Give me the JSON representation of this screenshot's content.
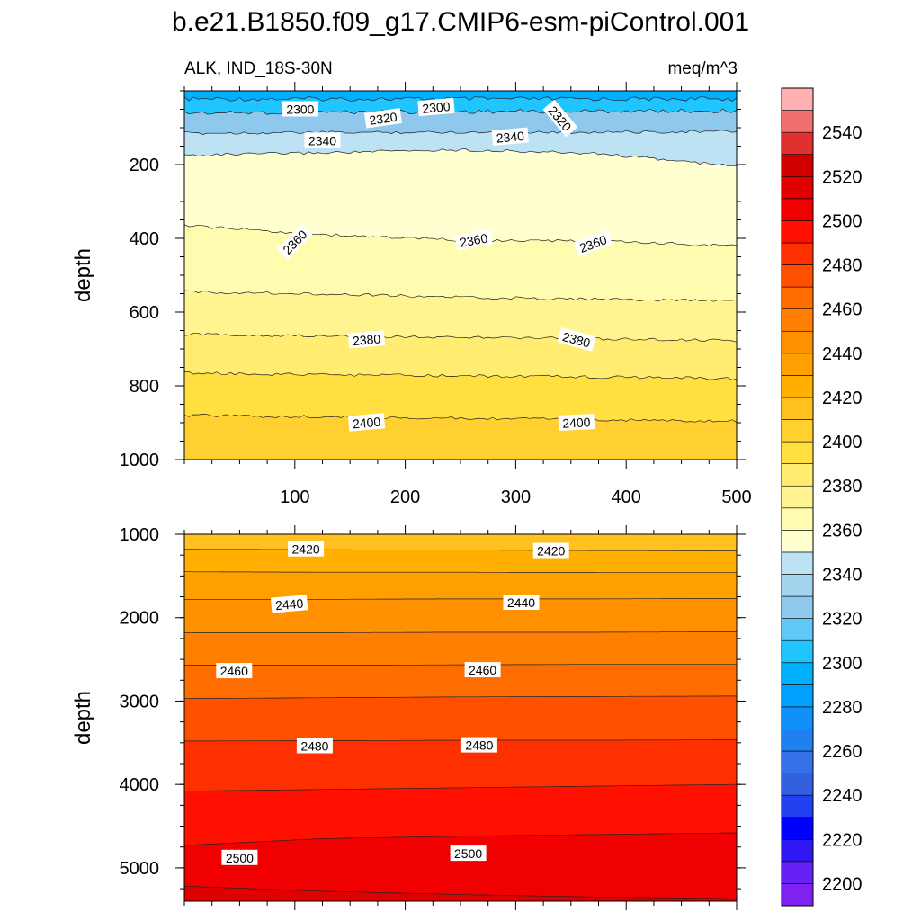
{
  "title": "b.e21.B1850.f09_g17.CMIP6-esm-piControl.001",
  "left_subtitle": "ALK, IND_18S-30N",
  "right_subtitle": "meq/m^3",
  "chart_data": [
    {
      "type": "contour",
      "panel": "upper",
      "ylabel": "depth",
      "xlabel": "",
      "xlim": [
        0,
        500
      ],
      "ylim": [
        1000,
        0
      ],
      "x_ticks": [
        100,
        200,
        300,
        400,
        500
      ],
      "y_ticks": [
        200,
        400,
        600,
        800,
        1000
      ],
      "contour_lines": [
        {
          "value": 2300,
          "depths": [
            22,
            22,
            22,
            22,
            22
          ]
        },
        {
          "value": 2320,
          "depths": [
            60,
            58,
            56,
            55,
            54
          ]
        },
        {
          "value": 2340,
          "depths": [
            115,
            113,
            112,
            112,
            110
          ]
        },
        {
          "value": 2350,
          "depths": [
            175,
            168,
            160,
            170,
            205
          ]
        },
        {
          "value": 2360,
          "depths": [
            365,
            390,
            405,
            408,
            420
          ]
        },
        {
          "value": 2370,
          "depths": [
            545,
            550,
            560,
            565,
            570
          ]
        },
        {
          "value": 2380,
          "depths": [
            660,
            665,
            668,
            672,
            678
          ]
        },
        {
          "value": 2390,
          "depths": [
            765,
            770,
            773,
            776,
            780
          ]
        },
        {
          "value": 2400,
          "depths": [
            880,
            884,
            888,
            892,
            896
          ]
        }
      ],
      "contour_labels": [
        {
          "text": "2300",
          "x": 105,
          "depth": 50,
          "angle": 0
        },
        {
          "text": "2320",
          "x": 180,
          "depth": 75,
          "angle": -8
        },
        {
          "text": "2300",
          "x": 228,
          "depth": 45,
          "angle": -5
        },
        {
          "text": "2320",
          "x": 340,
          "depth": 75,
          "angle": 50
        },
        {
          "text": "2340",
          "x": 125,
          "depth": 135,
          "angle": 0
        },
        {
          "text": "2340",
          "x": 295,
          "depth": 125,
          "angle": -5
        },
        {
          "text": "2360",
          "x": 100,
          "depth": 410,
          "angle": -45
        },
        {
          "text": "2360",
          "x": 262,
          "depth": 405,
          "angle": -10
        },
        {
          "text": "2360",
          "x": 370,
          "depth": 415,
          "angle": -20
        },
        {
          "text": "2380",
          "x": 165,
          "depth": 675,
          "angle": -5
        },
        {
          "text": "2380",
          "x": 355,
          "depth": 675,
          "angle": 15
        },
        {
          "text": "2400",
          "x": 165,
          "depth": 900,
          "angle": -5
        },
        {
          "text": "2400",
          "x": 355,
          "depth": 900,
          "angle": -3
        }
      ]
    },
    {
      "type": "contour",
      "panel": "lower",
      "ylabel": "depth",
      "xlabel": "",
      "xlim": [
        0,
        500
      ],
      "ylim": [
        5400,
        1000
      ],
      "y_ticks": [
        1000,
        2000,
        3000,
        4000,
        5000
      ],
      "contour_lines": [
        {
          "value": 2420,
          "depths": [
            1180,
            1185,
            1190,
            1195,
            1200
          ]
        },
        {
          "value": 2430,
          "depths": [
            1450,
            1455,
            1455,
            1460,
            1460
          ]
        },
        {
          "value": 2440,
          "depths": [
            1780,
            1780,
            1775,
            1775,
            1770
          ]
        },
        {
          "value": 2450,
          "depths": [
            2180,
            2180,
            2175,
            2175,
            2170
          ]
        },
        {
          "value": 2460,
          "depths": [
            2570,
            2570,
            2565,
            2560,
            2560
          ]
        },
        {
          "value": 2470,
          "depths": [
            2970,
            2960,
            2950,
            2945,
            2940
          ]
        },
        {
          "value": 2480,
          "depths": [
            3480,
            3475,
            3470,
            3470,
            3465
          ]
        },
        {
          "value": 2490,
          "depths": [
            4080,
            4060,
            4040,
            4020,
            4000
          ]
        },
        {
          "value": 2500,
          "depths": [
            4730,
            4650,
            4620,
            4600,
            4580
          ]
        },
        {
          "value": 2510,
          "depths": [
            5220,
            5280,
            5320,
            5350,
            5370
          ]
        }
      ],
      "contour_labels": [
        {
          "text": "2420",
          "x": 110,
          "depth": 1180,
          "angle": 0
        },
        {
          "text": "2420",
          "x": 332,
          "depth": 1200,
          "angle": 0
        },
        {
          "text": "2440",
          "x": 95,
          "depth": 1840,
          "angle": -5
        },
        {
          "text": "2440",
          "x": 305,
          "depth": 1820,
          "angle": 0
        },
        {
          "text": "2460",
          "x": 45,
          "depth": 2640,
          "angle": 0
        },
        {
          "text": "2460",
          "x": 270,
          "depth": 2630,
          "angle": 0
        },
        {
          "text": "2480",
          "x": 118,
          "depth": 3540,
          "angle": 0
        },
        {
          "text": "2480",
          "x": 267,
          "depth": 3530,
          "angle": 0
        },
        {
          "text": "2500",
          "x": 50,
          "depth": 4880,
          "angle": 0
        },
        {
          "text": "2500",
          "x": 257,
          "depth": 4830,
          "angle": 0
        }
      ]
    }
  ],
  "colorbar": {
    "tick_labels": [
      2200,
      2220,
      2240,
      2260,
      2280,
      2300,
      2320,
      2340,
      2360,
      2380,
      2400,
      2420,
      2440,
      2460,
      2480,
      2500,
      2520,
      2540
    ],
    "colors": [
      "#7f21f0",
      "#6622f5",
      "#2e17f0",
      "#0000ff",
      "#2240f0",
      "#3460e0",
      "#3470e8",
      "#2080f0",
      "#1090f8",
      "#00a0ff",
      "#00b0ff",
      "#20c4ff",
      "#60c8f6",
      "#8ec8ec",
      "#a4d4ee",
      "#bce2f4",
      "#ffffd0",
      "#fffcb0",
      "#fff490",
      "#ffec70",
      "#ffe040",
      "#ffd030",
      "#ffc020",
      "#ffb000",
      "#ffa000",
      "#ff9000",
      "#ff8000",
      "#ff6c00",
      "#ff5000",
      "#ff3000",
      "#ff1000",
      "#f00000",
      "#e00000",
      "#d00000",
      "#e03030",
      "#f07070",
      "#ffb0b0"
    ]
  }
}
